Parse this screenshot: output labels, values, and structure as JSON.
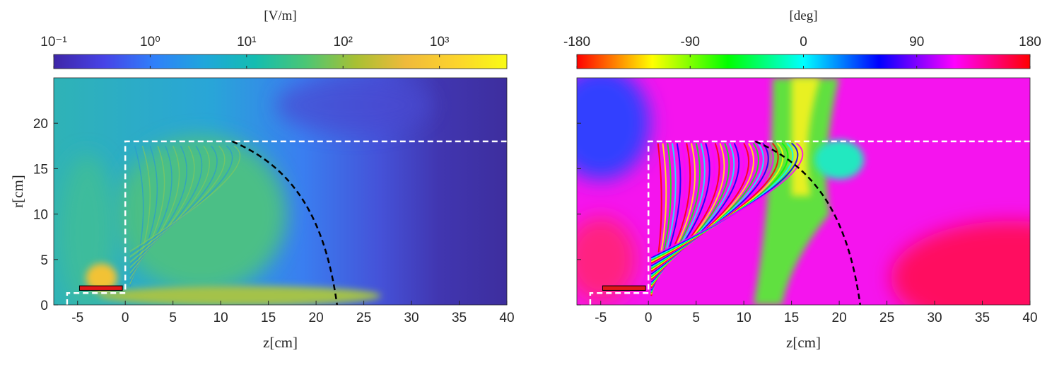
{
  "chart_data": [
    {
      "type": "heatmap",
      "xlabel": "z[cm]",
      "ylabel": "r[cm]",
      "xlim": [
        -7.5,
        40
      ],
      "xticks": [
        -5,
        0,
        5,
        10,
        15,
        20,
        25,
        30,
        35,
        40
      ],
      "ylim": [
        0,
        25
      ],
      "yticks": [
        0,
        5,
        10,
        15,
        20
      ],
      "ytick_labels": true,
      "colorbar": {
        "label": "[V/m]",
        "log": true,
        "clim": [
          0.1,
          5000
        ],
        "ticks": [
          {
            "value": 0.1,
            "label": "10⁻¹"
          },
          {
            "value": 1,
            "label": "10⁰"
          },
          {
            "value": 10,
            "label": "10¹"
          },
          {
            "value": 100,
            "label": "10²"
          },
          {
            "value": 1000,
            "label": "10³"
          }
        ],
        "colormap": [
          "#3e26a8",
          "#4743e7",
          "#2f80fa",
          "#1fa7db",
          "#14bdb0",
          "#4bc675",
          "#a8c033",
          "#f0ba3a",
          "#fcd42c",
          "#f9fb15"
        ]
      }
    },
    {
      "type": "heatmap",
      "xlabel": "z[cm]",
      "xlim": [
        -7.5,
        40
      ],
      "xticks": [
        -5,
        0,
        5,
        10,
        15,
        20,
        25,
        30,
        35,
        40
      ],
      "ylim": [
        0,
        25
      ],
      "yticks": [
        0,
        5,
        10,
        15,
        20
      ],
      "ytick_labels": false,
      "colorbar": {
        "label": "[deg]",
        "log": false,
        "clim": [
          -180,
          180
        ],
        "ticks": [
          -180,
          -90,
          0,
          90,
          180
        ],
        "colormap": [
          "#ff0000",
          "#ff8000",
          "#ffff00",
          "#80ff00",
          "#00ff00",
          "#00ff80",
          "#00ffff",
          "#0080ff",
          "#0000ff",
          "#8000ff",
          "#ff00ff",
          "#ff0080",
          "#ff0000"
        ]
      }
    }
  ]
}
